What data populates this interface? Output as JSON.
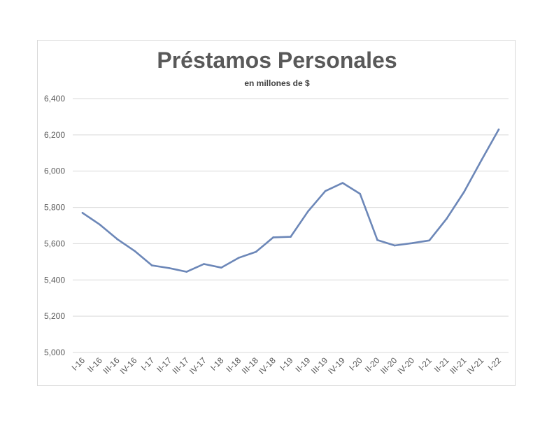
{
  "chart_data": {
    "type": "line",
    "title": "Préstamos Personales",
    "subtitle": "en millones de $",
    "xlabel": "",
    "ylabel": "",
    "ylim": [
      5000,
      6400
    ],
    "yticks": [
      5000,
      5200,
      5400,
      5600,
      5800,
      6000,
      6200,
      6400
    ],
    "ytick_labels": [
      "5,000",
      "5,200",
      "5,400",
      "5,600",
      "5,800",
      "6,000",
      "6,200",
      "6,400"
    ],
    "grid": true,
    "categories": [
      "I-16",
      "II-16",
      "III-16",
      "IV-16",
      "I-17",
      "II-17",
      "III-17",
      "IV-17",
      "I-18",
      "II-18",
      "III-18",
      "IV-18",
      "I-19",
      "II-19",
      "III-19",
      "IV-19",
      "I-20",
      "II-20",
      "III-20",
      "IV-20",
      "I-21",
      "II-21",
      "III-21",
      "IV-21",
      "I-22"
    ],
    "series": [
      {
        "values": [
          5770,
          5705,
          5625,
          5560,
          5480,
          5465,
          5445,
          5488,
          5468,
          5522,
          5555,
          5635,
          5638,
          5778,
          5890,
          5935,
          5875,
          5620,
          5590,
          5603,
          5618,
          5738,
          5885,
          6060,
          6230
        ],
        "color": "#6c87b8"
      }
    ]
  }
}
